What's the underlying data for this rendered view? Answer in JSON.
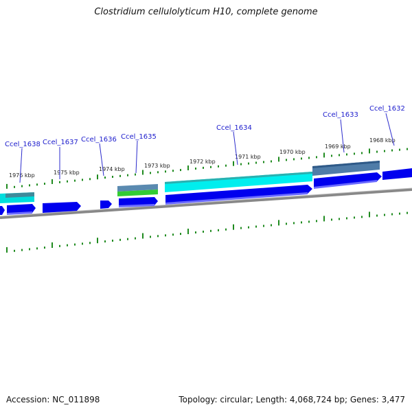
{
  "title": "Clostridium cellulolyticum H10, complete genome",
  "footer": {
    "accession": "Accession: NC_011898",
    "summary": "Topology: circular; Length: 4,068,724 bp; Genes: 3,477"
  },
  "ruler": {
    "ticks": [
      {
        "label": "1976 kbp"
      },
      {
        "label": "1975 kbp"
      },
      {
        "label": "1974 kbp"
      },
      {
        "label": "1973 kbp"
      },
      {
        "label": "1972 kbp"
      },
      {
        "label": "1971 kbp"
      },
      {
        "label": "1970 kbp"
      },
      {
        "label": "1969 kbp"
      },
      {
        "label": "1968 kbp"
      }
    ]
  },
  "genes": [
    {
      "name": "Ccel_1638"
    },
    {
      "name": "Ccel_1637"
    },
    {
      "name": "Ccel_1636"
    },
    {
      "name": "Ccel_1635"
    },
    {
      "name": "Ccel_1634"
    },
    {
      "name": "Ccel_1633"
    },
    {
      "name": "Ccel_1632"
    }
  ],
  "colors": {
    "cds": "#0000ee",
    "cds_light": "#4040ff",
    "cyan": "#00eeee",
    "steel": "#4a7aa0",
    "green": "#33cc33",
    "tick": "#1e8a1e",
    "label": "#1a1acc",
    "backbone": "#888888"
  }
}
